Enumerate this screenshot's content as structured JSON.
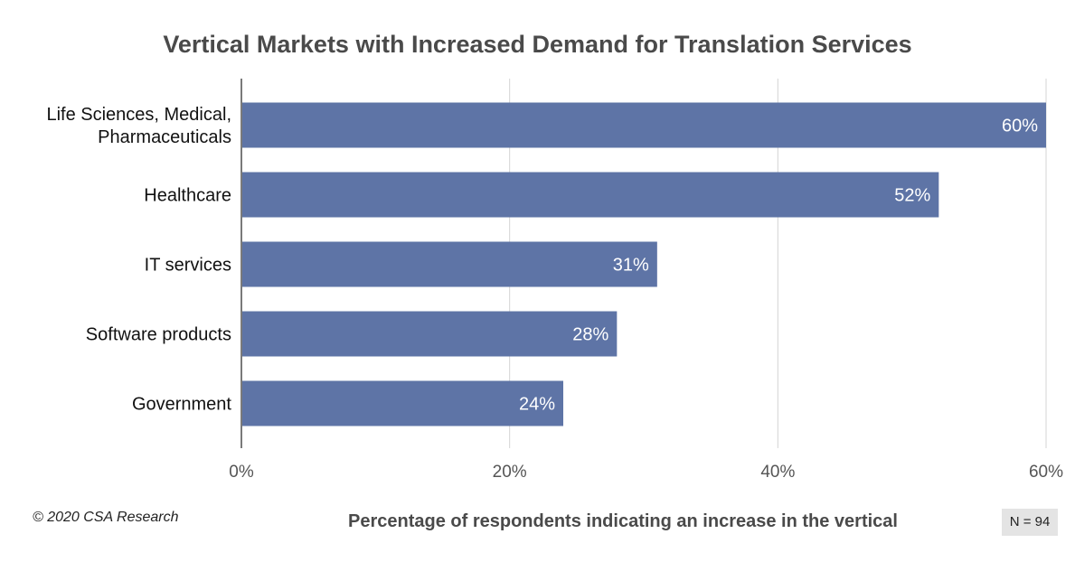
{
  "chart_data": {
    "type": "bar",
    "orientation": "horizontal",
    "title": "Vertical Markets with Increased Demand for Translation Services",
    "categories": [
      [
        "Life Sciences, Medical,",
        "Pharmaceuticals"
      ],
      [
        "Healthcare"
      ],
      [
        "IT services"
      ],
      [
        "Software products"
      ],
      [
        "Government"
      ]
    ],
    "values": [
      60,
      52,
      31,
      28,
      24
    ],
    "value_labels": [
      "60%",
      "52%",
      "31%",
      "28%",
      "24%"
    ],
    "xlabel": "Percentage of respondents indicating an increase in the vertical",
    "xlim": [
      0,
      60
    ],
    "xticks": [
      0,
      20,
      40,
      60
    ],
    "xtick_labels": [
      "0%",
      "20%",
      "40%",
      "60%"
    ],
    "grid": "vertical",
    "bar_color": "#5e74a6",
    "grid_color": "#d4d4d4"
  },
  "footer": {
    "copyright": "© 2020 CSA Research",
    "sample_size": "N = 94"
  }
}
